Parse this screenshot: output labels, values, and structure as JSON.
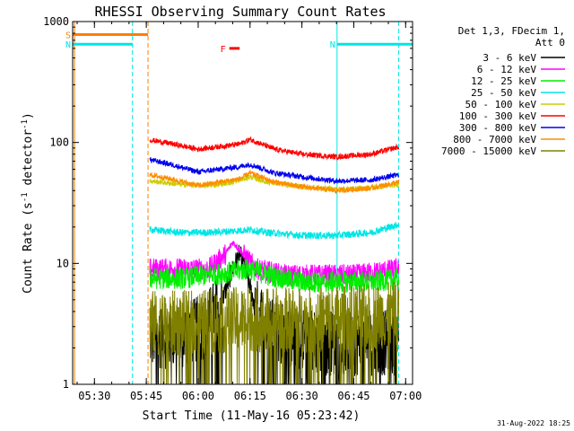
{
  "chart_data": {
    "type": "line",
    "title": "RHESSI Observing Summary Count Rates",
    "xlabel": "Start Time (11-May-16 05:23:42)",
    "ylabel": "Count Rate (s⁻¹ detector⁻¹)",
    "ylabel_main": "Count Rate (s",
    "ylabel_sup1": "-1",
    "ylabel_mid": " detector",
    "ylabel_sup2": "-1",
    "ylabel_end": ")",
    "yscale": "log",
    "ylim": [
      1,
      1000
    ],
    "xlim": [
      "05:23:42",
      "07:02:00"
    ],
    "x_ticks": [
      "05:30",
      "05:45",
      "06:00",
      "06:15",
      "06:30",
      "06:45",
      "07:00"
    ],
    "y_ticks": [
      "1",
      "10",
      "100",
      "1000"
    ],
    "legend": {
      "position": "top-right",
      "header_line1": "Det 1,3, FDecim 1,",
      "header_line2": "Att 0"
    },
    "footer_date": "31-Aug-2022 18:25",
    "flags": [
      {
        "label": "S",
        "start": "05:23:42",
        "end": "05:45:30",
        "level": 780,
        "color": "#ff7f00"
      },
      {
        "label": "N",
        "start": "05:23:42",
        "end": "05:41:00",
        "level": 650,
        "color": "#00e5e5"
      },
      {
        "label": "N",
        "start": "06:40:10",
        "end": "07:02:00",
        "level": 650,
        "color": "#00e5e5"
      },
      {
        "label": "F",
        "start": "06:09:00",
        "end": "06:12:00",
        "level": 600,
        "color": "#ff0000"
      }
    ],
    "vertical_lines": [
      {
        "time": "05:24:15",
        "color": "#ff7f00",
        "style": "solid"
      },
      {
        "time": "05:41:00",
        "color": "#00e5e5",
        "style": "dashed"
      },
      {
        "time": "05:45:30",
        "color": "#ff7f00",
        "style": "dashed"
      },
      {
        "time": "06:40:10",
        "color": "#00e5e5",
        "style": "solid"
      },
      {
        "time": "06:58:00",
        "color": "#00e5e5",
        "style": "dashed"
      }
    ],
    "series": [
      {
        "name": "3 - 6 keV",
        "color": "#000000",
        "points": [
          [
            "05:46",
            2.5
          ],
          [
            "05:55",
            2.5
          ],
          [
            "06:02",
            3
          ],
          [
            "06:07",
            5
          ],
          [
            "06:10",
            9
          ],
          [
            "06:12",
            12
          ],
          [
            "06:14",
            8
          ],
          [
            "06:17",
            4
          ],
          [
            "06:25",
            2.5
          ],
          [
            "06:35",
            2.2
          ],
          [
            "06:45",
            2.2
          ],
          [
            "06:58",
            2.2
          ]
        ]
      },
      {
        "name": "6 - 12 keV",
        "color": "#ff00ff",
        "points": [
          [
            "05:46",
            9
          ],
          [
            "05:55",
            9
          ],
          [
            "06:03",
            9
          ],
          [
            "06:08",
            12
          ],
          [
            "06:10",
            15
          ],
          [
            "06:12",
            13
          ],
          [
            "06:14",
            11
          ],
          [
            "06:17",
            9
          ],
          [
            "06:25",
            8
          ],
          [
            "06:35",
            8
          ],
          [
            "06:45",
            8
          ],
          [
            "06:58",
            9
          ]
        ]
      },
      {
        "name": "12 - 25 keV",
        "color": "#00ee00",
        "points": [
          [
            "05:46",
            7.5
          ],
          [
            "05:55",
            7.5
          ],
          [
            "06:03",
            8
          ],
          [
            "06:10",
            8.5
          ],
          [
            "06:15",
            9
          ],
          [
            "06:20",
            8
          ],
          [
            "06:30",
            7
          ],
          [
            "06:40",
            7
          ],
          [
            "06:50",
            7
          ],
          [
            "06:58",
            7.5
          ]
        ]
      },
      {
        "name": "25 - 50 keV",
        "color": "#00e5e5",
        "points": [
          [
            "05:46",
            19
          ],
          [
            "05:55",
            18
          ],
          [
            "06:03",
            18
          ],
          [
            "06:10",
            18.5
          ],
          [
            "06:15",
            19
          ],
          [
            "06:20",
            18
          ],
          [
            "06:30",
            17
          ],
          [
            "06:40",
            17
          ],
          [
            "06:50",
            18
          ],
          [
            "06:58",
            21
          ]
        ]
      },
      {
        "name": "50 - 100 keV",
        "color": "#cccc00",
        "points": [
          [
            "05:46",
            48
          ],
          [
            "05:55",
            45
          ],
          [
            "06:03",
            44
          ],
          [
            "06:10",
            47
          ],
          [
            "06:15",
            52
          ],
          [
            "06:20",
            47
          ],
          [
            "06:30",
            43
          ],
          [
            "06:40",
            41
          ],
          [
            "06:50",
            42
          ],
          [
            "06:58",
            45
          ]
        ]
      },
      {
        "name": "100 - 300 keV",
        "color": "#ff0000",
        "points": [
          [
            "05:46",
            105
          ],
          [
            "05:52",
            98
          ],
          [
            "06:00",
            88
          ],
          [
            "06:08",
            94
          ],
          [
            "06:12",
            97
          ],
          [
            "06:15",
            106
          ],
          [
            "06:22",
            88
          ],
          [
            "06:30",
            80
          ],
          [
            "06:40",
            76
          ],
          [
            "06:50",
            80
          ],
          [
            "06:58",
            92
          ]
        ]
      },
      {
        "name": "300 - 800 keV",
        "color": "#0000ee",
        "points": [
          [
            "05:46",
            72
          ],
          [
            "05:52",
            66
          ],
          [
            "06:00",
            57
          ],
          [
            "06:08",
            61
          ],
          [
            "06:12",
            63
          ],
          [
            "06:15",
            66
          ],
          [
            "06:22",
            56
          ],
          [
            "06:30",
            52
          ],
          [
            "06:40",
            48
          ],
          [
            "06:50",
            49
          ],
          [
            "06:58",
            54
          ]
        ]
      },
      {
        "name": "800 - 7000 keV",
        "color": "#ff8c00",
        "points": [
          [
            "05:46",
            54
          ],
          [
            "05:52",
            50
          ],
          [
            "06:00",
            44
          ],
          [
            "06:08",
            48
          ],
          [
            "06:12",
            50
          ],
          [
            "06:15",
            56
          ],
          [
            "06:22",
            47
          ],
          [
            "06:30",
            43
          ],
          [
            "06:40",
            40
          ],
          [
            "06:50",
            42
          ],
          [
            "06:58",
            47
          ]
        ]
      },
      {
        "name": "7000 - 15000 keV",
        "color": "#808000",
        "points": [
          [
            "05:46",
            3.2
          ],
          [
            "05:55",
            3.2
          ],
          [
            "06:03",
            3.3
          ],
          [
            "06:10",
            3.4
          ],
          [
            "06:15",
            3.5
          ],
          [
            "06:20",
            3.4
          ],
          [
            "06:30",
            3.4
          ],
          [
            "06:40",
            3.5
          ],
          [
            "06:50",
            3.6
          ],
          [
            "06:58",
            3.8
          ]
        ]
      }
    ]
  }
}
